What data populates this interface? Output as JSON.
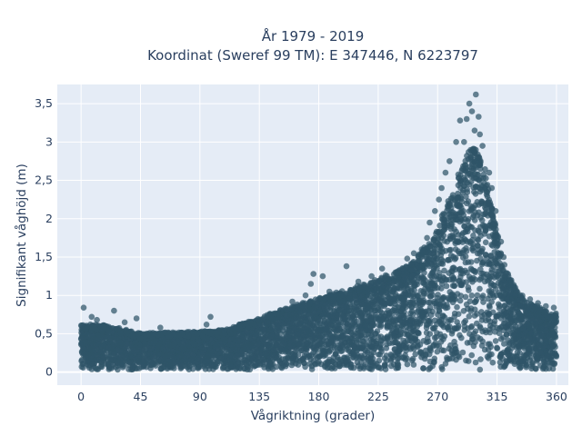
{
  "chart_data": {
    "type": "scatter",
    "title_lines": [
      "År 1979 - 2019",
      "Koordinat (Sweref 99 TM): E 347446, N 6223797"
    ],
    "xlabel": "Vågriktning (grader)",
    "ylabel": "Signifikant våghöjd (m)",
    "xlim": [
      -18,
      369
    ],
    "ylim": [
      -0.17,
      3.75
    ],
    "x_ticks": [
      {
        "value": 0,
        "label": "0"
      },
      {
        "value": 45,
        "label": "45"
      },
      {
        "value": 90,
        "label": "90"
      },
      {
        "value": 135,
        "label": "135"
      },
      {
        "value": 180,
        "label": "180"
      },
      {
        "value": 225,
        "label": "225"
      },
      {
        "value": 270,
        "label": "270"
      },
      {
        "value": 315,
        "label": "315"
      },
      {
        "value": 360,
        "label": "360"
      }
    ],
    "y_ticks": [
      {
        "value": 0,
        "label": "0"
      },
      {
        "value": 0.5,
        "label": "0,5"
      },
      {
        "value": 1,
        "label": "1"
      },
      {
        "value": 1.5,
        "label": "1,5"
      },
      {
        "value": 2,
        "label": "2"
      },
      {
        "value": 2.5,
        "label": "2,5"
      },
      {
        "value": 3,
        "label": "3"
      },
      {
        "value": 3.5,
        "label": "3,5"
      }
    ],
    "grid": true,
    "background_color": "#e5ecf6",
    "marker_color": "#2f5468",
    "envelope_upper": [
      [
        0,
        0.62
      ],
      [
        20,
        0.6
      ],
      [
        45,
        0.5
      ],
      [
        90,
        0.52
      ],
      [
        110,
        0.55
      ],
      [
        135,
        0.7
      ],
      [
        160,
        0.85
      ],
      [
        180,
        0.95
      ],
      [
        200,
        1.05
      ],
      [
        225,
        1.2
      ],
      [
        250,
        1.4
      ],
      [
        265,
        1.7
      ],
      [
        275,
        2.1
      ],
      [
        285,
        2.5
      ],
      [
        293,
        2.85
      ],
      [
        298,
        2.95
      ],
      [
        305,
        2.7
      ],
      [
        315,
        1.8
      ],
      [
        322,
        1.3
      ],
      [
        330,
        1.05
      ],
      [
        340,
        0.9
      ],
      [
        350,
        0.8
      ],
      [
        360,
        0.75
      ]
    ],
    "outliers": [
      [
        2,
        0.84
      ],
      [
        8,
        0.72
      ],
      [
        12,
        0.68
      ],
      [
        25,
        0.8
      ],
      [
        33,
        0.65
      ],
      [
        42,
        0.7
      ],
      [
        60,
        0.58
      ],
      [
        95,
        0.62
      ],
      [
        98,
        0.72
      ],
      [
        120,
        0.62
      ],
      [
        150,
        0.75
      ],
      [
        160,
        0.92
      ],
      [
        170,
        1.0
      ],
      [
        174,
        1.15
      ],
      [
        176,
        1.28
      ],
      [
        183,
        1.25
      ],
      [
        188,
        1.05
      ],
      [
        201,
        1.38
      ],
      [
        210,
        1.18
      ],
      [
        220,
        1.25
      ],
      [
        228,
        1.35
      ],
      [
        238,
        1.3
      ],
      [
        247,
        1.48
      ],
      [
        252,
        1.55
      ],
      [
        258,
        1.6
      ],
      [
        262,
        1.75
      ],
      [
        264,
        1.95
      ],
      [
        268,
        2.1
      ],
      [
        271,
        2.25
      ],
      [
        273,
        2.4
      ],
      [
        276,
        2.6
      ],
      [
        279,
        2.75
      ],
      [
        284,
        3.0
      ],
      [
        287,
        3.28
      ],
      [
        290,
        3.0
      ],
      [
        292,
        3.3
      ],
      [
        294,
        3.5
      ],
      [
        296,
        3.4
      ],
      [
        298,
        3.15
      ],
      [
        299,
        3.62
      ],
      [
        301,
        3.33
      ],
      [
        302,
        3.1
      ],
      [
        304,
        2.95
      ],
      [
        309,
        2.6
      ],
      [
        311,
        2.4
      ],
      [
        314,
        2.1
      ],
      [
        318,
        1.7
      ],
      [
        320,
        1.5
      ],
      [
        325,
        1.2
      ],
      [
        329,
        1.0
      ],
      [
        334,
        0.95
      ],
      [
        340,
        0.95
      ],
      [
        346,
        0.9
      ],
      [
        352,
        0.86
      ],
      [
        358,
        0.84
      ]
    ]
  }
}
